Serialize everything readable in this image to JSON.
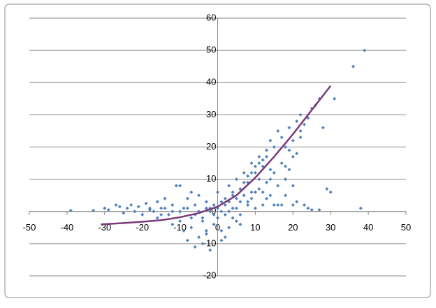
{
  "chart_data": {
    "type": "scatter",
    "xlim": [
      -50,
      50
    ],
    "ylim": [
      -20,
      60
    ],
    "xticks": [
      -50,
      -40,
      -30,
      -20,
      -10,
      0,
      10,
      20,
      30,
      40,
      50
    ],
    "yticks": [
      -20,
      -10,
      0,
      10,
      20,
      30,
      40,
      50,
      60
    ],
    "grid": true,
    "series": [
      {
        "color": "#4f81bd",
        "mode": "markers",
        "x": [
          -39,
          -33,
          -30,
          -29,
          -27,
          -26,
          -25,
          -24,
          -23,
          -22,
          -21,
          -20,
          -19,
          -18,
          -17,
          -16,
          -16,
          -15,
          -14,
          -13,
          -12,
          -12,
          -11,
          -10,
          -10,
          -9,
          -9,
          -8,
          -8,
          -7,
          -7,
          -6,
          -6,
          -5,
          -5,
          -4,
          -4,
          -3,
          -3,
          -2,
          -2,
          -1,
          -1,
          0,
          0,
          1,
          1,
          2,
          2,
          3,
          3,
          4,
          4,
          5,
          5,
          6,
          6,
          7,
          7,
          8,
          8,
          9,
          9,
          10,
          10,
          11,
          11,
          12,
          12,
          13,
          13,
          14,
          14,
          15,
          15,
          16,
          16,
          17,
          17,
          18,
          18,
          19,
          19,
          20,
          20,
          21,
          21,
          22,
          22,
          23,
          23,
          24,
          25,
          26,
          27,
          28,
          29,
          30,
          31,
          36,
          38,
          39,
          -4,
          -3,
          0,
          1,
          2,
          3,
          5,
          6,
          7,
          8,
          9,
          10,
          11,
          12,
          13,
          -1,
          -2,
          4,
          5,
          6,
          3,
          2,
          -5,
          -6,
          -8,
          -10,
          -12,
          -14,
          15,
          16,
          12,
          13,
          10,
          18,
          20,
          14,
          25,
          27,
          24,
          21,
          17,
          19,
          20,
          22,
          18,
          -7,
          -3,
          1,
          4,
          8,
          11,
          14,
          9,
          -15,
          -18
        ],
        "y": [
          0.3,
          0.3,
          1,
          0.5,
          2,
          1.5,
          -0.5,
          1,
          2,
          0,
          1.5,
          -1,
          2.5,
          1,
          0,
          3,
          -2,
          1,
          4,
          -1,
          2,
          -4,
          8,
          8,
          -3,
          1,
          -6,
          4,
          -9,
          -2,
          6,
          -11,
          2,
          -8,
          5,
          -3,
          -10,
          3,
          -6,
          0,
          -12,
          2,
          -4,
          6,
          -2,
          -6,
          3,
          -1,
          4,
          8,
          0,
          -2,
          5,
          10,
          1,
          3,
          -1,
          12,
          5,
          2,
          9,
          15,
          4,
          1,
          12,
          17,
          7,
          2,
          14,
          19,
          9,
          5,
          22,
          12,
          20,
          25,
          8,
          15,
          23,
          5,
          20,
          26,
          13,
          22,
          8,
          28,
          18,
          30,
          25,
          2,
          27,
          29,
          32,
          33,
          35,
          26,
          7,
          6,
          35,
          45,
          1,
          50,
          -2,
          1,
          1,
          0,
          2,
          3,
          4,
          7,
          9,
          11,
          12,
          14,
          15,
          16,
          17,
          -1,
          1,
          1,
          -3,
          -4,
          -5,
          -8,
          0,
          -1,
          1,
          0,
          0,
          1,
          2,
          2,
          6,
          4,
          6,
          10,
          2,
          10,
          0.5,
          0.5,
          1,
          3,
          2,
          19,
          17,
          23,
          14,
          -5,
          -7,
          -9,
          6,
          3,
          10,
          13,
          6,
          -1,
          0.5
        ]
      },
      {
        "color": "#7b3a78",
        "mode": "line",
        "x": [
          -31,
          -25,
          -20,
          -15,
          -10,
          -5,
          0,
          5,
          10,
          15,
          20,
          25,
          30
        ],
        "y": [
          -4,
          -3.6,
          -3.2,
          -2.7,
          -1.8,
          -0.5,
          1.5,
          5,
          10.5,
          17,
          24,
          31.5,
          39
        ]
      }
    ]
  }
}
